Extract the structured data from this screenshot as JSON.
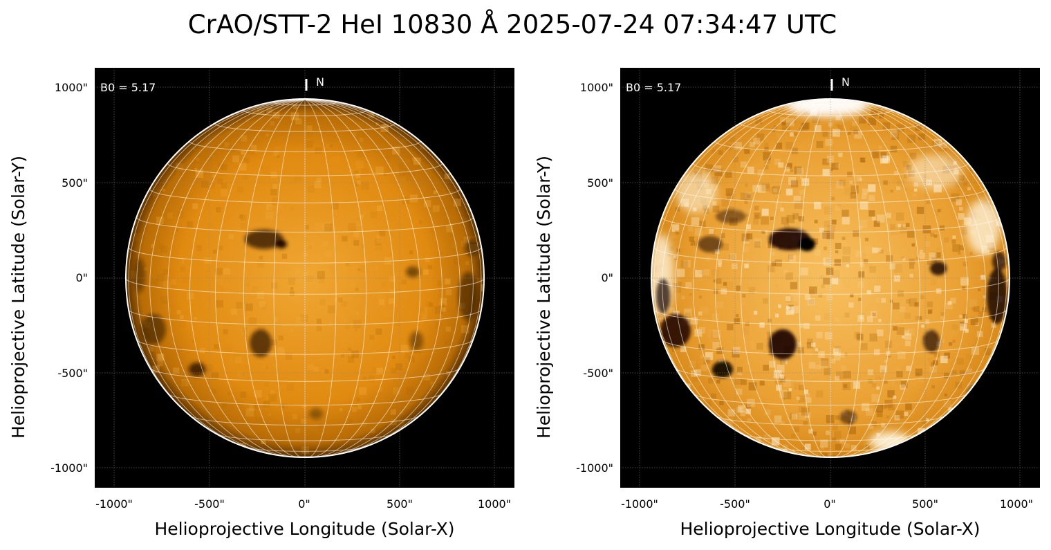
{
  "title": "CrAO/STT-2 HeI 10830 Å 2025-07-24 07:34:47 UTC",
  "colors": {
    "sun_base": "#e28d0e",
    "sun_bright": "#fff2cf",
    "sun_dark": "#160800",
    "sky": "#000000"
  },
  "panels": [
    {
      "name": "left",
      "b0_label": "B0 = 5.17",
      "north_label": "N",
      "xlabel": "Helioprojective Longitude (Solar-X)",
      "ylabel": "Helioprojective Latitude (Solar-Y)",
      "xticks": [
        "-1000\"",
        "-500\"",
        "0\"",
        "500\"",
        "1000\""
      ],
      "yticks": [
        "1000\"",
        "500\"",
        "0\"",
        "-500\"",
        "-1000\""
      ],
      "contrast": "normal"
    },
    {
      "name": "right",
      "b0_label": "B0 = 5.17",
      "north_label": "N",
      "xlabel": "Helioprojective Longitude (Solar-X)",
      "ylabel": "Helioprojective Latitude (Solar-Y)",
      "xticks": [
        "-1000\"",
        "-500\"",
        "0\"",
        "500\"",
        "1000\""
      ],
      "yticks": [
        "1000\"",
        "500\"",
        "0\"",
        "-500\"",
        "-1000\""
      ],
      "contrast": "enhanced"
    }
  ]
}
